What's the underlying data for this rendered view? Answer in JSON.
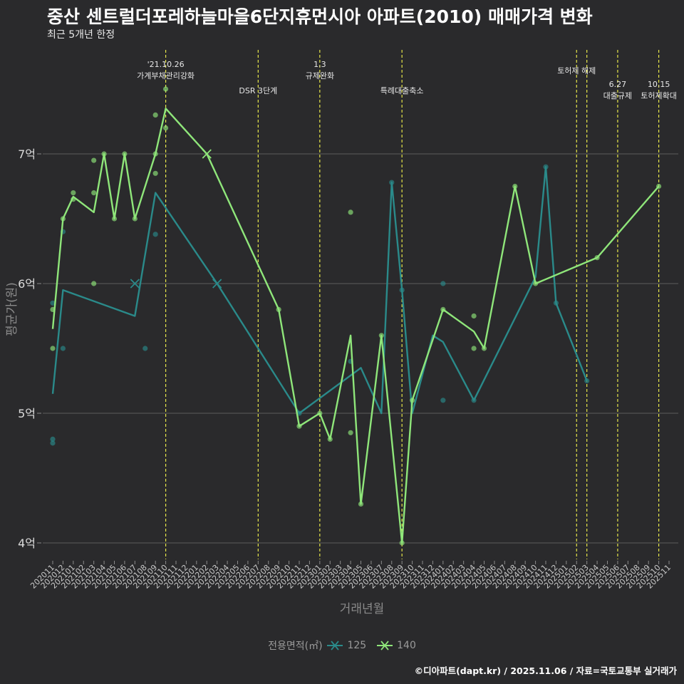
{
  "header": {
    "title": "중산 센트럴더포레하늘마을6단지휴먼시아 아파트(2010) 매매가격 변화",
    "subtitle": "최근 5개년 한정"
  },
  "footer": {
    "caption": "©디아파트(dapt.kr) / 2025.11.06 / 자료=국토교통부 실거래가"
  },
  "legend": {
    "title": "전용면적(㎡)",
    "items": [
      {
        "label": "125",
        "color": "#2a8a8a"
      },
      {
        "label": "140",
        "color": "#8fe67a"
      }
    ]
  },
  "chart_data": {
    "type": "line",
    "title": "중산 센트럴더포레하늘마을6단지휴먼시아 아파트(2010) 매매가격 변화",
    "xlabel": "거래년월",
    "ylabel": "평균가(원)",
    "ylim": [
      3.85,
      7.75
    ],
    "yticks": [
      4,
      5,
      6,
      7
    ],
    "ytick_labels": [
      "4억",
      "5억",
      "6억",
      "7억"
    ],
    "categories": [
      "202011",
      "202012",
      "202101",
      "202102",
      "202103",
      "202104",
      "202105",
      "202106",
      "202107",
      "202108",
      "202109",
      "202110",
      "202111",
      "202112",
      "202201",
      "202202",
      "202203",
      "202204",
      "202205",
      "202206",
      "202207",
      "202208",
      "202209",
      "202210",
      "202211",
      "202212",
      "202301",
      "202302",
      "202303",
      "202304",
      "202305",
      "202306",
      "202307",
      "202308",
      "202309",
      "202310",
      "202311",
      "202312",
      "202401",
      "202402",
      "202403",
      "202404",
      "202405",
      "202406",
      "202407",
      "202408",
      "202409",
      "202410",
      "202411",
      "202412",
      "202501",
      "202502",
      "202503",
      "202504",
      "202505",
      "202506",
      "202507",
      "202508",
      "202509",
      "202510",
      "202511"
    ],
    "series": [
      {
        "name": "125",
        "color": "#2a8a8a",
        "line": [
          [
            "202011",
            5.15
          ],
          [
            "202012",
            5.95
          ],
          [
            "202107",
            5.75
          ],
          [
            "202109",
            6.7
          ],
          [
            "202203",
            6.0
          ],
          [
            "202211",
            5.0
          ],
          [
            "202305",
            5.35
          ],
          [
            "202307",
            5.0
          ],
          [
            "202308",
            6.78
          ],
          [
            "202309",
            5.95
          ],
          [
            "202310",
            5.0
          ],
          [
            "202312",
            5.6
          ],
          [
            "202401",
            5.55
          ],
          [
            "202404",
            5.1
          ],
          [
            "202410",
            6.05
          ],
          [
            "202411",
            6.9
          ],
          [
            "202412",
            5.85
          ],
          [
            "202502",
            5.45
          ],
          [
            "202503",
            5.25
          ]
        ],
        "points": [
          [
            "202011",
            4.8
          ],
          [
            "202011",
            4.77
          ],
          [
            "202011",
            5.85
          ],
          [
            "202012",
            5.5
          ],
          [
            "202012",
            6.4
          ],
          [
            "202108",
            5.5
          ],
          [
            "202109",
            6.38
          ],
          [
            "202211",
            5.0
          ],
          [
            "202304",
            5.4
          ],
          [
            "202308",
            6.78
          ],
          [
            "202309",
            5.95
          ],
          [
            "202401",
            6.0
          ],
          [
            "202401",
            5.1
          ],
          [
            "202404",
            5.1
          ],
          [
            "202411",
            6.9
          ],
          [
            "202412",
            5.85
          ],
          [
            "202503",
            5.25
          ]
        ],
        "cross_points": [
          [
            "202107",
            6.0
          ],
          [
            "202203",
            6.0
          ]
        ]
      },
      {
        "name": "140",
        "color": "#8fe67a",
        "line": [
          [
            "202011",
            5.65
          ],
          [
            "202012",
            6.5
          ],
          [
            "202101",
            6.67
          ],
          [
            "202103",
            6.55
          ],
          [
            "202104",
            7.0
          ],
          [
            "202105",
            6.5
          ],
          [
            "202106",
            7.0
          ],
          [
            "202107",
            6.5
          ],
          [
            "202109",
            7.0
          ],
          [
            "202110",
            7.35
          ],
          [
            "202202",
            7.0
          ],
          [
            "202209",
            5.8
          ],
          [
            "202211",
            4.9
          ],
          [
            "202301",
            5.0
          ],
          [
            "202302",
            4.8
          ],
          [
            "202304",
            5.6
          ],
          [
            "202305",
            4.3
          ],
          [
            "202307",
            5.6
          ],
          [
            "202309",
            4.0
          ],
          [
            "202310",
            5.1
          ],
          [
            "202401",
            5.8
          ],
          [
            "202404",
            5.63
          ],
          [
            "202405",
            5.5
          ],
          [
            "202408",
            6.75
          ],
          [
            "202410",
            6.0
          ],
          [
            "202504",
            6.2
          ],
          [
            "202510",
            6.75
          ]
        ],
        "points": [
          [
            "202011",
            5.5
          ],
          [
            "202011",
            5.8
          ],
          [
            "202012",
            6.5
          ],
          [
            "202101",
            6.7
          ],
          [
            "202101",
            6.65
          ],
          [
            "202103",
            6.95
          ],
          [
            "202103",
            6.7
          ],
          [
            "202103",
            6.0
          ],
          [
            "202104",
            7.0
          ],
          [
            "202105",
            6.5
          ],
          [
            "202106",
            7.0
          ],
          [
            "202107",
            6.5
          ],
          [
            "202109",
            7.3
          ],
          [
            "202109",
            7.0
          ],
          [
            "202109",
            6.85
          ],
          [
            "202110",
            7.5
          ],
          [
            "202110",
            7.2
          ],
          [
            "202209",
            5.8
          ],
          [
            "202211",
            4.9
          ],
          [
            "202301",
            5.0
          ],
          [
            "202302",
            4.8
          ],
          [
            "202304",
            6.55
          ],
          [
            "202304",
            4.85
          ],
          [
            "202305",
            4.3
          ],
          [
            "202307",
            5.6
          ],
          [
            "202309",
            4.0
          ],
          [
            "202310",
            5.1
          ],
          [
            "202401",
            5.8
          ],
          [
            "202404",
            5.75
          ],
          [
            "202404",
            5.5
          ],
          [
            "202405",
            5.5
          ],
          [
            "202408",
            6.75
          ],
          [
            "202410",
            6.0
          ],
          [
            "202504",
            6.2
          ],
          [
            "202510",
            6.75
          ]
        ],
        "cross_points": [
          [
            "202202",
            7.0
          ]
        ]
      }
    ],
    "events": [
      {
        "month": "202110",
        "label_lines": [
          "'21.10.26",
          "가계부채관리강화"
        ]
      },
      {
        "month": "202207",
        "label_lines": [
          "DSR 3단계"
        ]
      },
      {
        "month": "202301",
        "label_lines": [
          "1.3",
          "규제완화"
        ]
      },
      {
        "month": "202309",
        "label_lines": [
          "특례대출축소"
        ]
      },
      {
        "month": "202502",
        "label_lines": [
          "토허제 해제"
        ]
      },
      {
        "month": "202503",
        "label_lines": []
      },
      {
        "month": "202506",
        "label_lines": [
          "6.27",
          "대출규제"
        ]
      },
      {
        "month": "202510",
        "label_lines": [
          "10.15",
          "토허제확대"
        ]
      }
    ],
    "event_color": "#e6e64a",
    "grid": true,
    "legend_position": "bottom"
  }
}
